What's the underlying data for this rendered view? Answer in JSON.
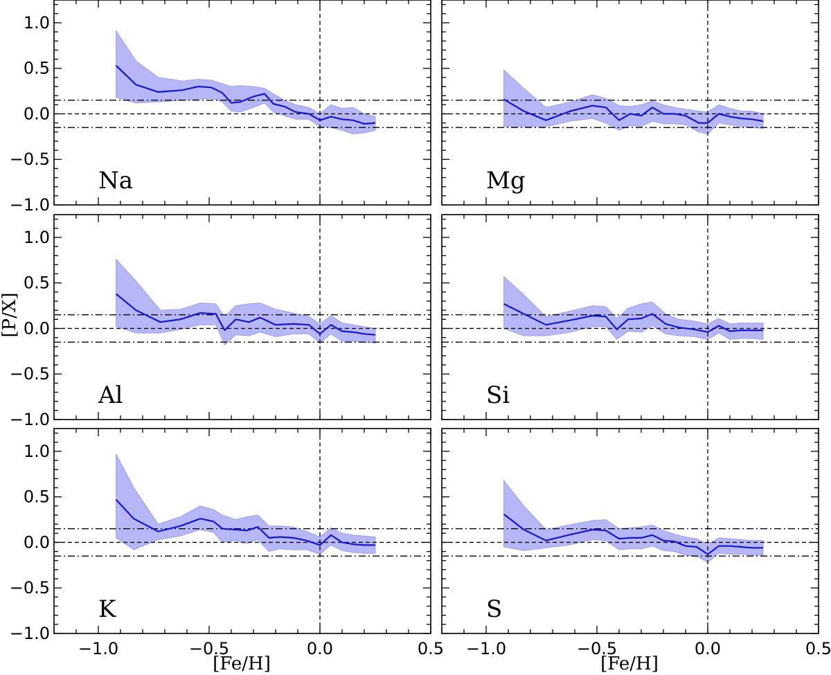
{
  "chart_data": {
    "type": "line",
    "xlabel": "[Fe/H]",
    "ylabel": "[P/X]",
    "xlim": [
      -1.2,
      0.5
    ],
    "ylim": [
      -1.0,
      1.25
    ],
    "xticks": [
      -1.0,
      -0.5,
      0.0,
      0.5
    ],
    "xtick_labels": [
      "−1.0",
      "−0.5",
      "0.0",
      "0.5"
    ],
    "yticks": [
      1.0,
      0.5,
      0.0,
      -0.5,
      -1.0
    ],
    "ytick_labels": [
      "1.0",
      "0.5",
      "0.0",
      "−0.5",
      "−1.0"
    ],
    "reference_lines": {
      "horizontal_dashed": 0.0,
      "horizontal_dashdot": [
        0.15,
        -0.15
      ],
      "vertical_dashed": 0.0
    },
    "colors": {
      "line": "#1414e0",
      "band": "#b3b3f8",
      "band_edge": "#9d9df3"
    },
    "panels": [
      {
        "label": "Na",
        "x": [
          -0.92,
          -0.83,
          -0.73,
          -0.62,
          -0.55,
          -0.49,
          -0.44,
          -0.4,
          -0.36,
          -0.3,
          -0.25,
          -0.21,
          -0.16,
          -0.11,
          -0.05,
          0.0,
          0.05,
          0.1,
          0.15,
          0.2,
          0.25
        ],
        "y": [
          0.53,
          0.32,
          0.24,
          0.26,
          0.3,
          0.29,
          0.23,
          0.12,
          0.13,
          0.19,
          0.22,
          0.11,
          0.08,
          0.02,
          0.0,
          -0.07,
          -0.03,
          -0.06,
          -0.07,
          -0.11,
          -0.1
        ],
        "upper": [
          0.91,
          0.58,
          0.4,
          0.36,
          0.38,
          0.37,
          0.33,
          0.3,
          0.31,
          0.3,
          0.28,
          0.22,
          0.15,
          0.1,
          0.07,
          0.0,
          0.1,
          0.06,
          0.07,
          0.0,
          -0.03
        ],
        "lower": [
          0.18,
          0.12,
          0.13,
          0.15,
          0.16,
          0.17,
          0.13,
          0.03,
          0.02,
          0.07,
          0.12,
          0.02,
          -0.02,
          -0.06,
          -0.06,
          -0.14,
          -0.15,
          -0.18,
          -0.22,
          -0.21,
          -0.18
        ]
      },
      {
        "label": "Mg",
        "x": [
          -0.92,
          -0.83,
          -0.73,
          -0.62,
          -0.52,
          -0.46,
          -0.4,
          -0.35,
          -0.3,
          -0.25,
          -0.2,
          -0.15,
          -0.1,
          -0.04,
          0.0,
          0.05,
          0.1,
          0.15,
          0.2,
          0.25
        ],
        "y": [
          0.16,
          0.03,
          -0.07,
          0.03,
          0.09,
          0.07,
          -0.07,
          0.0,
          -0.02,
          0.07,
          0.0,
          0.0,
          -0.02,
          -0.1,
          -0.1,
          0.0,
          -0.03,
          -0.05,
          -0.06,
          -0.08
        ],
        "upper": [
          0.48,
          0.28,
          0.07,
          0.13,
          0.21,
          0.17,
          0.09,
          0.08,
          0.1,
          0.14,
          0.1,
          0.07,
          0.05,
          0.03,
          0.02,
          0.1,
          0.06,
          0.03,
          0.03,
          0.0
        ],
        "lower": [
          -0.14,
          -0.14,
          -0.14,
          -0.08,
          -0.05,
          -0.1,
          -0.18,
          -0.13,
          -0.14,
          -0.08,
          -0.11,
          -0.11,
          -0.12,
          -0.2,
          -0.22,
          -0.1,
          -0.12,
          -0.14,
          -0.15,
          -0.16
        ]
      },
      {
        "label": "Al",
        "x": [
          -0.92,
          -0.83,
          -0.72,
          -0.63,
          -0.54,
          -0.47,
          -0.43,
          -0.38,
          -0.32,
          -0.27,
          -0.2,
          -0.12,
          -0.05,
          0.0,
          0.05,
          0.1,
          0.15,
          0.2,
          0.25
        ],
        "y": [
          0.38,
          0.2,
          0.07,
          0.1,
          0.17,
          0.16,
          -0.02,
          0.1,
          0.07,
          0.12,
          0.04,
          0.05,
          0.04,
          -0.06,
          0.04,
          -0.03,
          -0.04,
          -0.06,
          -0.07
        ],
        "upper": [
          0.76,
          0.52,
          0.2,
          0.21,
          0.28,
          0.27,
          0.13,
          0.25,
          0.27,
          0.28,
          0.21,
          0.17,
          0.13,
          0.05,
          0.14,
          0.06,
          0.04,
          0.02,
          0.0
        ],
        "lower": [
          0.02,
          -0.05,
          -0.05,
          -0.01,
          0.04,
          0.04,
          -0.18,
          -0.07,
          -0.08,
          -0.04,
          -0.09,
          -0.06,
          -0.06,
          -0.16,
          -0.06,
          -0.14,
          -0.14,
          -0.15,
          -0.16
        ]
      },
      {
        "label": "Si",
        "x": [
          -0.92,
          -0.83,
          -0.73,
          -0.62,
          -0.52,
          -0.46,
          -0.41,
          -0.36,
          -0.3,
          -0.25,
          -0.19,
          -0.13,
          -0.06,
          0.0,
          0.05,
          0.1,
          0.15,
          0.2,
          0.25
        ],
        "y": [
          0.27,
          0.16,
          0.04,
          0.09,
          0.14,
          0.13,
          -0.01,
          0.1,
          0.11,
          0.16,
          0.05,
          0.01,
          -0.01,
          -0.04,
          0.03,
          -0.03,
          -0.02,
          -0.02,
          -0.02
        ],
        "upper": [
          0.57,
          0.37,
          0.13,
          0.19,
          0.25,
          0.24,
          0.11,
          0.22,
          0.27,
          0.29,
          0.16,
          0.1,
          0.08,
          0.05,
          0.11,
          0.05,
          0.06,
          0.06,
          0.06
        ],
        "lower": [
          0.0,
          -0.08,
          -0.08,
          -0.04,
          0.02,
          0.02,
          -0.12,
          -0.03,
          -0.04,
          0.03,
          -0.06,
          -0.08,
          -0.09,
          -0.12,
          -0.05,
          -0.12,
          -0.11,
          -0.11,
          -0.12
        ]
      },
      {
        "label": "K",
        "x": [
          -0.92,
          -0.84,
          -0.73,
          -0.63,
          -0.54,
          -0.48,
          -0.44,
          -0.38,
          -0.33,
          -0.28,
          -0.23,
          -0.18,
          -0.12,
          -0.06,
          0.0,
          0.05,
          0.1,
          0.15,
          0.2,
          0.25
        ],
        "y": [
          0.47,
          0.26,
          0.12,
          0.18,
          0.26,
          0.23,
          0.15,
          0.14,
          0.13,
          0.17,
          0.05,
          0.06,
          0.05,
          0.02,
          -0.03,
          0.08,
          0.0,
          -0.02,
          -0.03,
          -0.03
        ],
        "upper": [
          0.97,
          0.6,
          0.2,
          0.28,
          0.4,
          0.36,
          0.3,
          0.25,
          0.28,
          0.3,
          0.18,
          0.18,
          0.17,
          0.12,
          0.06,
          0.16,
          0.1,
          0.08,
          0.07,
          0.06
        ],
        "lower": [
          0.05,
          -0.08,
          0.03,
          0.07,
          0.14,
          0.11,
          0.0,
          0.02,
          -0.01,
          0.03,
          -0.1,
          -0.07,
          -0.08,
          -0.08,
          -0.13,
          -0.03,
          -0.09,
          -0.11,
          -0.12,
          -0.12
        ]
      },
      {
        "label": "S",
        "x": [
          -0.92,
          -0.83,
          -0.73,
          -0.63,
          -0.52,
          -0.46,
          -0.4,
          -0.35,
          -0.3,
          -0.25,
          -0.2,
          -0.15,
          -0.1,
          -0.05,
          0.0,
          0.05,
          0.1,
          0.15,
          0.2,
          0.25
        ],
        "y": [
          0.31,
          0.14,
          0.02,
          0.08,
          0.14,
          0.13,
          0.04,
          0.05,
          0.05,
          0.08,
          0.02,
          0.01,
          -0.04,
          -0.05,
          -0.13,
          -0.04,
          -0.04,
          -0.05,
          -0.06,
          -0.06
        ],
        "upper": [
          0.68,
          0.4,
          0.14,
          0.19,
          0.24,
          0.25,
          0.15,
          0.16,
          0.17,
          0.19,
          0.13,
          0.09,
          0.06,
          0.04,
          -0.02,
          0.05,
          0.04,
          0.03,
          0.02,
          0.02
        ],
        "lower": [
          -0.05,
          -0.09,
          -0.06,
          -0.03,
          0.03,
          0.02,
          -0.08,
          -0.07,
          -0.07,
          -0.04,
          -0.09,
          -0.1,
          -0.14,
          -0.15,
          -0.22,
          -0.12,
          -0.13,
          -0.13,
          -0.14,
          -0.14
        ]
      }
    ]
  }
}
